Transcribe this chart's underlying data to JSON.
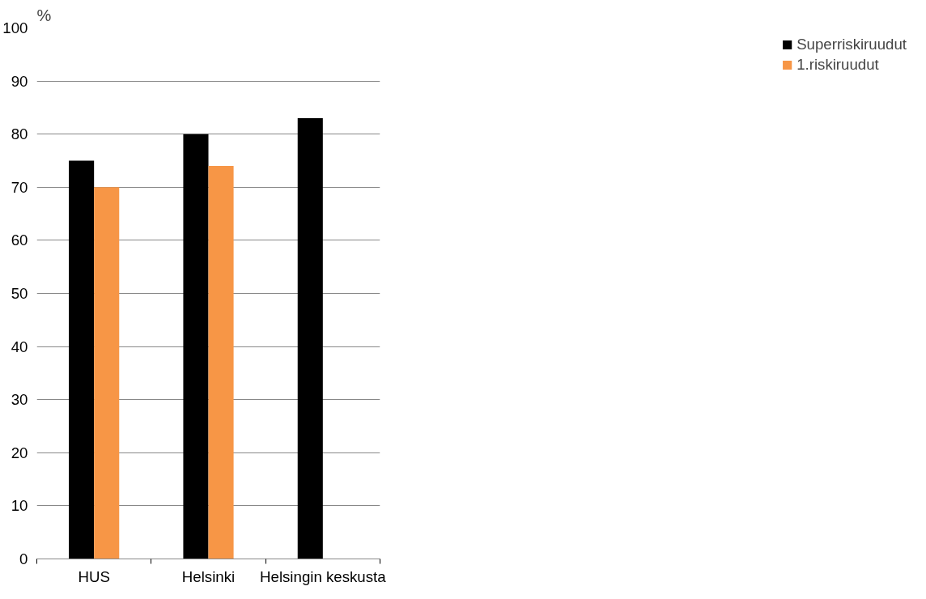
{
  "chart_data": {
    "type": "bar",
    "ylabel": "%",
    "categories": [
      "HUS",
      "Helsinki",
      "Helsingin keskusta"
    ],
    "series": [
      {
        "name": "Superriskiruudut",
        "color": "#000000",
        "values": [
          75,
          80,
          83
        ]
      },
      {
        "name": "1.riskiruudut",
        "color": "#f79646",
        "values": [
          70,
          74,
          null
        ]
      }
    ],
    "ylim": [
      0,
      100
    ],
    "yticks": [
      0,
      10,
      20,
      30,
      40,
      50,
      60,
      70,
      80,
      90,
      100
    ],
    "grid": "y",
    "legend": "right"
  }
}
